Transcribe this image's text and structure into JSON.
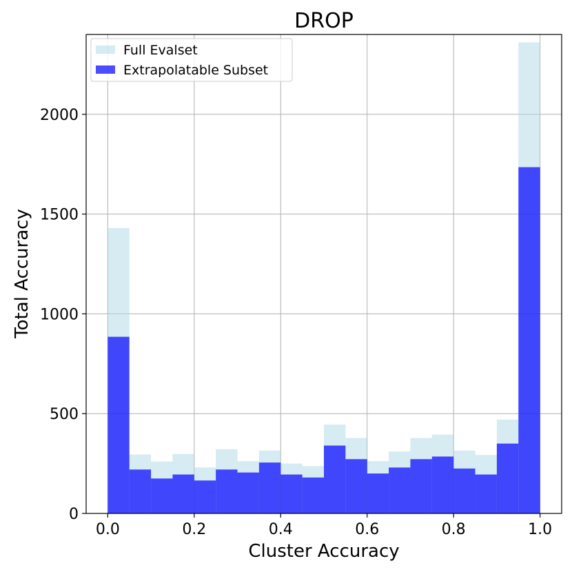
{
  "chart_data": {
    "type": "bar",
    "title": "DROP",
    "xlabel": "Cluster Accuracy",
    "ylabel": "Total Accuracy",
    "xlim": [
      -0.05,
      1.05
    ],
    "ylim": [
      0,
      2400
    ],
    "xticks": [
      "0.0",
      "0.2",
      "0.4",
      "0.6",
      "0.8",
      "1.0"
    ],
    "xtick_values": [
      0.0,
      0.2,
      0.4,
      0.6,
      0.8,
      1.0
    ],
    "yticks": [
      "0",
      "500",
      "1000",
      "1500",
      "2000"
    ],
    "ytick_values": [
      0,
      500,
      1000,
      1500,
      2000
    ],
    "grid": true,
    "legend_position": "top-left",
    "bin_edges": [
      0.0,
      0.05,
      0.1,
      0.15,
      0.2,
      0.25,
      0.3,
      0.35,
      0.4,
      0.45,
      0.5,
      0.55,
      0.6,
      0.65,
      0.7,
      0.75,
      0.8,
      0.85,
      0.9,
      0.95,
      1.0
    ],
    "series": [
      {
        "name": "Full Evalset",
        "color": "#add8e6",
        "opacity": 0.5,
        "values": [
          1430,
          295,
          260,
          298,
          230,
          322,
          262,
          315,
          250,
          237,
          445,
          378,
          262,
          310,
          378,
          395,
          315,
          293,
          470,
          2360
        ]
      },
      {
        "name": "Extrapolatable Subset",
        "color": "#0000ff",
        "opacity": 0.7,
        "values": [
          885,
          220,
          175,
          195,
          165,
          220,
          205,
          255,
          195,
          180,
          340,
          272,
          200,
          230,
          272,
          285,
          225,
          195,
          350,
          1735
        ]
      }
    ]
  }
}
